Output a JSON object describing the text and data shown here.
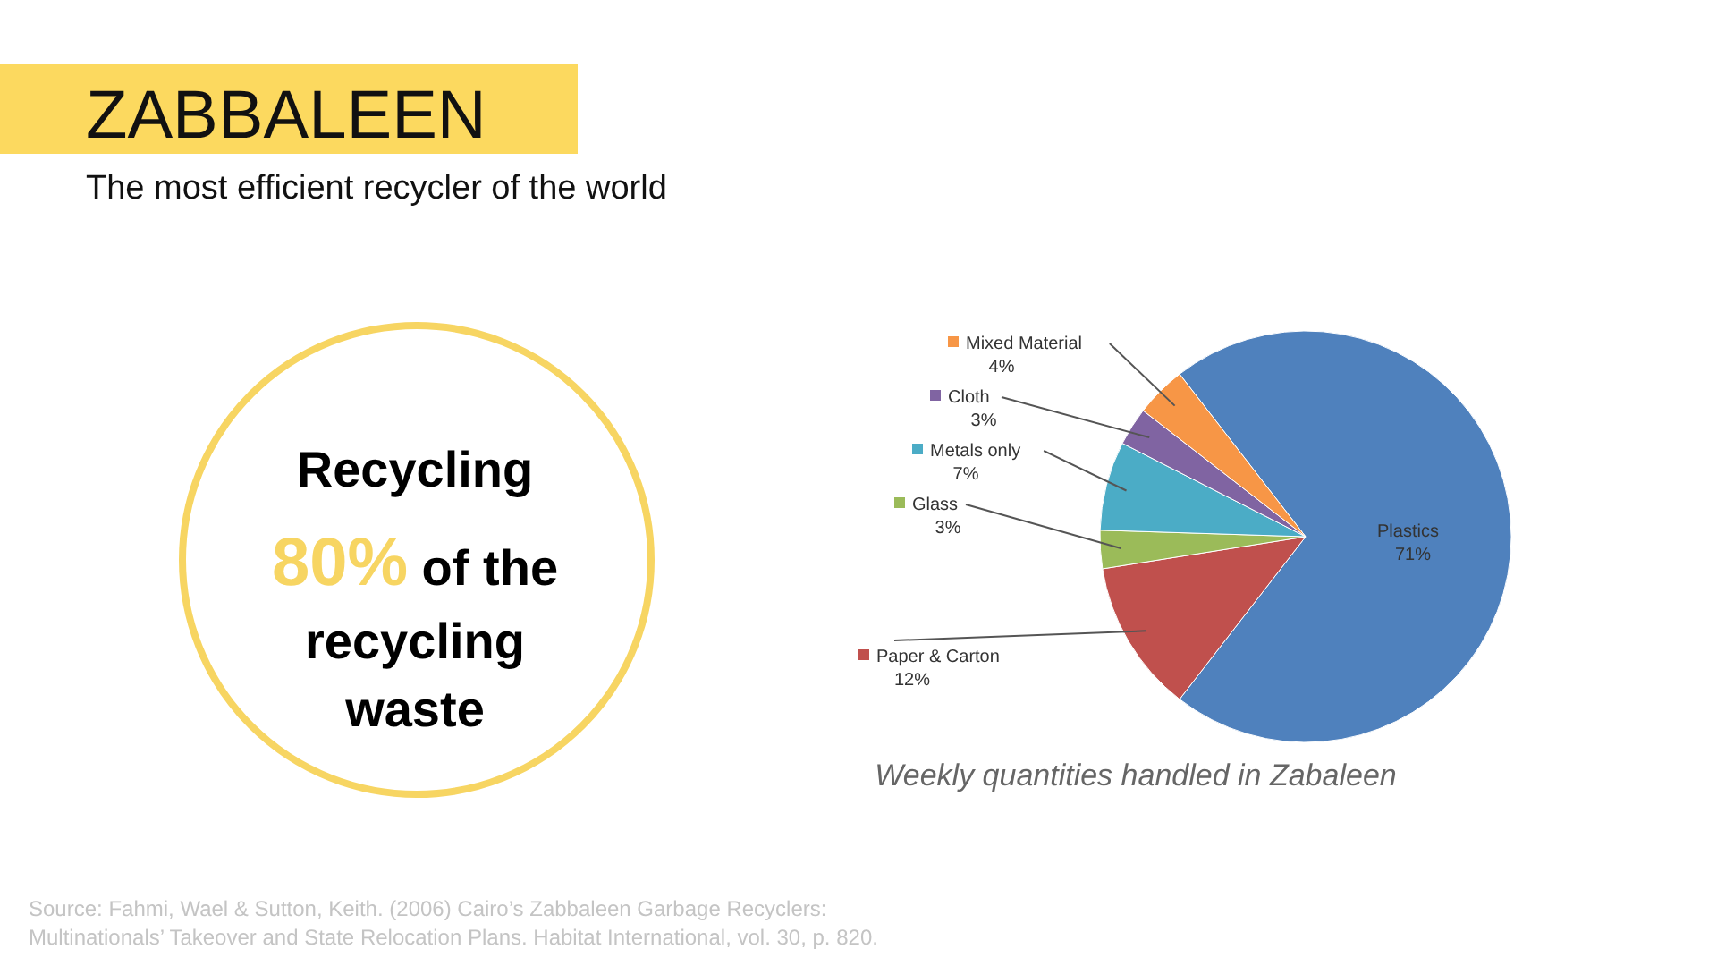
{
  "chart_data": {
    "type": "pie",
    "title": "ZABBALEEN",
    "subtitle": "The most efficient recycler of the world",
    "categories": [
      "Plastics",
      "Paper & Carton",
      "Glass",
      "Metals only",
      "Cloth",
      "Mixed Material"
    ],
    "values": [
      71,
      12,
      3,
      7,
      3,
      4
    ],
    "colors": [
      "#4f81bd",
      "#c0504d",
      "#9bbb59",
      "#4bacc6",
      "#8064a2",
      "#f79646"
    ],
    "value_labels": [
      "71%",
      "12%",
      "3%",
      "7%",
      "3%",
      "4%"
    ],
    "legend": "left",
    "annotations": [
      "Recycling",
      "80%",
      "of the",
      "recycling",
      "waste",
      "Weekly quantities handled in Zabaleen",
      "Source:  Fahmi, Wael & Sutton, Keith. (2006) Cairo’s Zabbaleen Garbage Recyclers: Multinationals’ Takeover and State Relocation Plans. Habitat International, vol. 30, p. 820."
    ]
  }
}
